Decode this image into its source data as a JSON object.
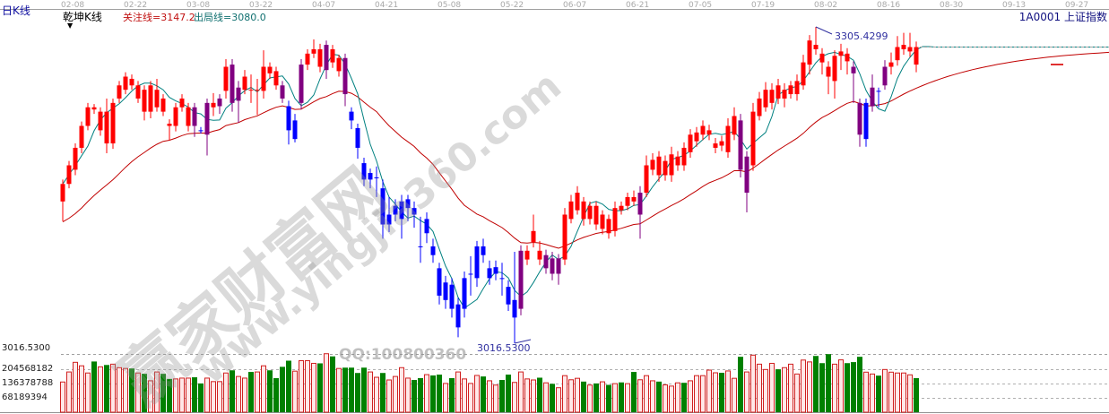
{
  "header": {
    "period_label": "日K线",
    "indicator_name": "乾坤K线",
    "focus_line": "关注线=3147.2",
    "exit_line": "出局线=3080.0",
    "symbol": "1A0001 上证指数"
  },
  "watermark": {
    "cn": "赢家财富网",
    "url": "www.yingjia360.com",
    "qq": "QQ:100800360"
  },
  "colors": {
    "up": "#ff0000",
    "down": "#0000ff",
    "neutral": "#800080",
    "ma_short": "#008080",
    "ma_long": "#c00000",
    "vol_up_stroke": "#d02020",
    "vol_up_fill": "#ffe8e8",
    "vol_down": "#008000",
    "label": "#3030a0"
  },
  "chart_data": {
    "type": "candlestick",
    "date_ticks": [
      "02-08",
      "02-22",
      "03-08",
      "03-22",
      "04-07",
      "04-21",
      "05-08",
      "05-22",
      "06-07",
      "06-21",
      "07-05",
      "07-19",
      "08-02",
      "08-16",
      "08-30",
      "09-13",
      "09-27"
    ],
    "price_axis_label": "3016.5300",
    "high_annotation": "3305.4299",
    "low_annotation": "3016.5300",
    "candle_fields": [
      "open",
      "high",
      "low",
      "close",
      "color"
    ],
    "candles": [
      [
        3146,
        3166,
        3128,
        3162,
        "r"
      ],
      [
        3162,
        3183,
        3158,
        3179,
        "r"
      ],
      [
        3175,
        3199,
        3170,
        3195,
        "r"
      ],
      [
        3195,
        3219,
        3190,
        3215,
        "r"
      ],
      [
        3215,
        3236,
        3211,
        3232,
        "r"
      ],
      [
        3230,
        3235,
        3226,
        3232,
        "r"
      ],
      [
        3211,
        3232,
        3206,
        3228,
        "r"
      ],
      [
        3199,
        3240,
        3190,
        3228,
        "r"
      ],
      [
        3199,
        3240,
        3194,
        3236,
        "r"
      ],
      [
        3240,
        3256,
        3236,
        3252,
        "r"
      ],
      [
        3248,
        3264,
        3244,
        3260,
        "r"
      ],
      [
        3252,
        3262,
        3248,
        3258,
        "r"
      ],
      [
        3240,
        3256,
        3236,
        3252,
        "r"
      ],
      [
        3228,
        3252,
        3220,
        3248,
        "r"
      ],
      [
        3228,
        3256,
        3222,
        3252,
        "r"
      ],
      [
        3232,
        3258,
        3228,
        3248,
        "r"
      ],
      [
        3228,
        3244,
        3224,
        3240,
        "r"
      ],
      [
        3215,
        3221,
        3202,
        3217,
        "r"
      ],
      [
        3215,
        3236,
        3210,
        3232,
        "r"
      ],
      [
        3232,
        3244,
        3228,
        3240,
        "r"
      ],
      [
        3215,
        3236,
        3210,
        3232,
        "r"
      ],
      [
        3232,
        3236,
        3205,
        3215,
        "p"
      ],
      [
        3211,
        3214,
        3208,
        3211,
        "b"
      ],
      [
        3236,
        3240,
        3188,
        3207,
        "p"
      ],
      [
        3232,
        3245,
        3224,
        3236,
        "r"
      ],
      [
        3240,
        3244,
        3226,
        3233,
        "p"
      ],
      [
        3247,
        3276,
        3240,
        3269,
        "r"
      ],
      [
        3271,
        3276,
        3228,
        3236,
        "p"
      ],
      [
        3250,
        3256,
        3218,
        3238,
        "p"
      ],
      [
        3248,
        3266,
        3244,
        3260,
        "r"
      ],
      [
        3248,
        3262,
        3236,
        3248,
        "r"
      ],
      [
        3248,
        3258,
        3225,
        3248,
        "r"
      ],
      [
        3247,
        3284,
        3240,
        3269,
        "r"
      ],
      [
        3263,
        3273,
        3258,
        3269,
        "r"
      ],
      [
        3252,
        3269,
        3248,
        3265,
        "r"
      ],
      [
        3240,
        3256,
        3236,
        3252,
        "p"
      ],
      [
        3233,
        3238,
        3198,
        3211,
        "b"
      ],
      [
        3220,
        3226,
        3200,
        3203,
        "b"
      ],
      [
        3271,
        3276,
        3230,
        3236,
        "p"
      ],
      [
        3271,
        3285,
        3266,
        3281,
        "r"
      ],
      [
        3281,
        3294,
        3277,
        3285,
        "r"
      ],
      [
        3269,
        3290,
        3264,
        3285,
        "r"
      ],
      [
        3289,
        3293,
        3258,
        3266,
        "p"
      ],
      [
        3273,
        3289,
        3268,
        3285,
        "r"
      ],
      [
        3265,
        3280,
        3260,
        3277,
        "r"
      ],
      [
        3277,
        3281,
        3233,
        3244,
        "p"
      ],
      [
        3228,
        3232,
        3212,
        3220,
        "b"
      ],
      [
        3213,
        3217,
        3185,
        3195,
        "b"
      ],
      [
        3181,
        3186,
        3160,
        3166,
        "b"
      ],
      [
        3172,
        3176,
        3158,
        3166,
        "b"
      ],
      [
        3168,
        3178,
        3150,
        3168,
        "b"
      ],
      [
        3158,
        3166,
        3112,
        3125,
        "b"
      ],
      [
        3134,
        3150,
        3118,
        3125,
        "b"
      ],
      [
        3142,
        3148,
        3128,
        3134,
        "b"
      ],
      [
        3146,
        3152,
        3112,
        3130,
        "b"
      ],
      [
        3148,
        3152,
        3128,
        3140,
        "b"
      ],
      [
        3140,
        3146,
        3122,
        3134,
        "b"
      ],
      [
        3105,
        3132,
        3090,
        3105,
        "b"
      ],
      [
        3130,
        3136,
        3108,
        3117,
        "b"
      ],
      [
        3105,
        3112,
        3090,
        3097,
        "b"
      ],
      [
        3085,
        3090,
        3052,
        3060,
        "b"
      ],
      [
        3072,
        3078,
        3048,
        3056,
        "b"
      ],
      [
        3070,
        3076,
        3040,
        3048,
        "b"
      ],
      [
        3052,
        3058,
        3022,
        3031,
        "b"
      ],
      [
        3076,
        3082,
        3040,
        3048,
        "b"
      ],
      [
        3080,
        3096,
        3060,
        3080,
        "b"
      ],
      [
        3105,
        3110,
        3068,
        3076,
        "b"
      ],
      [
        3105,
        3112,
        3090,
        3097,
        "b"
      ],
      [
        3085,
        3092,
        3070,
        3076,
        "b"
      ],
      [
        3086,
        3092,
        3074,
        3080,
        "b"
      ],
      [
        3076,
        3090,
        3060,
        3076,
        "b"
      ],
      [
        3068,
        3074,
        3046,
        3052,
        "b"
      ],
      [
        3056,
        3100,
        3016.53,
        3040,
        "b"
      ],
      [
        3101,
        3106,
        3042,
        3048,
        "p"
      ],
      [
        3093,
        3106,
        3088,
        3101,
        "r"
      ],
      [
        3109,
        3134,
        3104,
        3119,
        "r"
      ],
      [
        3093,
        3110,
        3088,
        3101,
        "r"
      ],
      [
        3097,
        3102,
        3080,
        3085,
        "p"
      ],
      [
        3094,
        3100,
        3074,
        3080,
        "p"
      ],
      [
        3094,
        3098,
        3070,
        3080,
        "p"
      ],
      [
        3093,
        3140,
        3088,
        3134,
        "r"
      ],
      [
        3130,
        3152,
        3126,
        3146,
        "r"
      ],
      [
        3138,
        3160,
        3134,
        3154,
        "r"
      ],
      [
        3130,
        3150,
        3124,
        3146,
        "r"
      ],
      [
        3130,
        3146,
        3125,
        3142,
        "r"
      ],
      [
        3125,
        3146,
        3120,
        3142,
        "r"
      ],
      [
        3121,
        3138,
        3116,
        3134,
        "r"
      ],
      [
        3117,
        3134,
        3112,
        3130,
        "r"
      ],
      [
        3119,
        3146,
        3114,
        3140,
        "r"
      ],
      [
        3138,
        3146,
        3134,
        3142,
        "r"
      ],
      [
        3142,
        3154,
        3138,
        3150,
        "r"
      ],
      [
        3146,
        3156,
        3142,
        3150,
        "r"
      ],
      [
        3154,
        3160,
        3112,
        3134,
        "p"
      ],
      [
        3154,
        3188,
        3150,
        3179,
        "r"
      ],
      [
        3175,
        3190,
        3170,
        3184,
        "r"
      ],
      [
        3170,
        3192,
        3164,
        3187,
        "r"
      ],
      [
        3170,
        3188,
        3165,
        3183,
        "r"
      ],
      [
        3170,
        3196,
        3164,
        3189,
        "r"
      ],
      [
        3179,
        3192,
        3174,
        3187,
        "r"
      ],
      [
        3179,
        3200,
        3174,
        3195,
        "r"
      ],
      [
        3191,
        3212,
        3186,
        3207,
        "r"
      ],
      [
        3201,
        3214,
        3196,
        3209,
        "r"
      ],
      [
        3207,
        3220,
        3202,
        3215,
        "r"
      ],
      [
        3207,
        3216,
        3202,
        3211,
        "r"
      ],
      [
        3195,
        3204,
        3190,
        3199,
        "r"
      ],
      [
        3197,
        3206,
        3192,
        3201,
        "r"
      ],
      [
        3191,
        3222,
        3186,
        3215,
        "r"
      ],
      [
        3207,
        3232,
        3202,
        3224,
        "r"
      ],
      [
        3220,
        3226,
        3168,
        3175,
        "p"
      ],
      [
        3187,
        3192,
        3136,
        3154,
        "p"
      ],
      [
        3179,
        3236,
        3174,
        3228,
        "r"
      ],
      [
        3224,
        3246,
        3220,
        3240,
        "r"
      ],
      [
        3232,
        3255,
        3228,
        3248,
        "r"
      ],
      [
        3236,
        3254,
        3230,
        3248,
        "r"
      ],
      [
        3240,
        3258,
        3235,
        3252,
        "r"
      ],
      [
        3240,
        3254,
        3232,
        3248,
        "r"
      ],
      [
        3244,
        3256,
        3240,
        3252,
        "r"
      ],
      [
        3244,
        3262,
        3238,
        3256,
        "r"
      ],
      [
        3252,
        3280,
        3248,
        3273,
        "r"
      ],
      [
        3271,
        3298,
        3262,
        3293,
        "r"
      ],
      [
        3285,
        3305.43,
        3280,
        3289,
        "r"
      ],
      [
        3273,
        3286,
        3262,
        3281,
        "r"
      ],
      [
        3260,
        3274,
        3244,
        3269,
        "r"
      ],
      [
        3256,
        3284,
        3240,
        3279,
        "r"
      ],
      [
        3279,
        3290,
        3266,
        3283,
        "r"
      ],
      [
        3274,
        3286,
        3262,
        3281,
        "r"
      ],
      [
        3269,
        3274,
        3236,
        3263,
        "p"
      ],
      [
        3236,
        3240,
        3196,
        3207,
        "p"
      ],
      [
        3236,
        3240,
        3196,
        3203,
        "b"
      ],
      [
        3250,
        3262,
        3228,
        3233,
        "p"
      ],
      [
        3247,
        3250,
        3232,
        3247,
        "b"
      ],
      [
        3269,
        3275,
        3248,
        3252,
        "p"
      ],
      [
        3269,
        3282,
        3262,
        3273,
        "r"
      ],
      [
        3275,
        3297,
        3270,
        3287,
        "r"
      ],
      [
        3285,
        3300,
        3280,
        3289,
        "r"
      ],
      [
        3283,
        3300,
        3278,
        3287,
        "r"
      ],
      [
        3271,
        3292,
        3264,
        3287,
        "r"
      ]
    ],
    "volume_axis_labels": [
      "204568182",
      "136378788",
      "68189394"
    ],
    "volume_fields": [
      "value_millions",
      "color"
    ],
    "volumes": [
      [
        143,
        "r"
      ],
      [
        192,
        "r"
      ],
      [
        239,
        "r"
      ],
      [
        222,
        "r"
      ],
      [
        187,
        "r"
      ],
      [
        243,
        "g"
      ],
      [
        217,
        "r"
      ],
      [
        226,
        "g"
      ],
      [
        230,
        "r"
      ],
      [
        213,
        "r"
      ],
      [
        209,
        "r"
      ],
      [
        209,
        "g"
      ],
      [
        187,
        "r"
      ],
      [
        183,
        "g"
      ],
      [
        149,
        "r"
      ],
      [
        192,
        "r"
      ],
      [
        183,
        "g"
      ],
      [
        158,
        "g"
      ],
      [
        158,
        "r"
      ],
      [
        162,
        "r"
      ],
      [
        162,
        "r"
      ],
      [
        166,
        "g"
      ],
      [
        136,
        "g"
      ],
      [
        162,
        "r"
      ],
      [
        145,
        "r"
      ],
      [
        145,
        "r"
      ],
      [
        187,
        "r"
      ],
      [
        200,
        "g"
      ],
      [
        170,
        "r"
      ],
      [
        162,
        "r"
      ],
      [
        192,
        "g"
      ],
      [
        192,
        "r"
      ],
      [
        222,
        "r"
      ],
      [
        200,
        "g"
      ],
      [
        162,
        "g"
      ],
      [
        217,
        "g"
      ],
      [
        247,
        "g"
      ],
      [
        196,
        "r"
      ],
      [
        247,
        "r"
      ],
      [
        247,
        "r"
      ],
      [
        234,
        "r"
      ],
      [
        234,
        "g"
      ],
      [
        281,
        "r"
      ],
      [
        268,
        "g"
      ],
      [
        209,
        "r"
      ],
      [
        213,
        "g"
      ],
      [
        213,
        "g"
      ],
      [
        187,
        "g"
      ],
      [
        213,
        "g"
      ],
      [
        192,
        "r"
      ],
      [
        166,
        "r"
      ],
      [
        187,
        "g"
      ],
      [
        153,
        "r"
      ],
      [
        170,
        "r"
      ],
      [
        213,
        "r"
      ],
      [
        162,
        "r"
      ],
      [
        153,
        "g"
      ],
      [
        162,
        "g"
      ],
      [
        179,
        "r"
      ],
      [
        175,
        "g"
      ],
      [
        179,
        "g"
      ],
      [
        136,
        "r"
      ],
      [
        162,
        "g"
      ],
      [
        192,
        "r"
      ],
      [
        158,
        "r"
      ],
      [
        136,
        "r"
      ],
      [
        175,
        "r"
      ],
      [
        170,
        "g"
      ],
      [
        149,
        "r"
      ],
      [
        128,
        "r"
      ],
      [
        153,
        "g"
      ],
      [
        179,
        "g"
      ],
      [
        141,
        "r"
      ],
      [
        192,
        "r"
      ],
      [
        158,
        "r"
      ],
      [
        153,
        "r"
      ],
      [
        164,
        "g"
      ],
      [
        139,
        "r"
      ],
      [
        134,
        "g"
      ],
      [
        115,
        "r"
      ],
      [
        174,
        "r"
      ],
      [
        154,
        "r"
      ],
      [
        161,
        "r"
      ],
      [
        145,
        "g"
      ],
      [
        128,
        "r"
      ],
      [
        136,
        "g"
      ],
      [
        144,
        "r"
      ],
      [
        129,
        "g"
      ],
      [
        135,
        "r"
      ],
      [
        141,
        "g"
      ],
      [
        135,
        "r"
      ],
      [
        192,
        "g"
      ],
      [
        154,
        "r"
      ],
      [
        174,
        "r"
      ],
      [
        149,
        "r"
      ],
      [
        145,
        "g"
      ],
      [
        129,
        "r"
      ],
      [
        123,
        "r"
      ],
      [
        139,
        "r"
      ],
      [
        139,
        "g"
      ],
      [
        149,
        "r"
      ],
      [
        174,
        "r"
      ],
      [
        174,
        "r"
      ],
      [
        201,
        "r"
      ],
      [
        188,
        "r"
      ],
      [
        188,
        "g"
      ],
      [
        197,
        "r"
      ],
      [
        161,
        "r"
      ],
      [
        266,
        "g"
      ],
      [
        192,
        "r"
      ],
      [
        274,
        "r"
      ],
      [
        230,
        "r"
      ],
      [
        204,
        "r"
      ],
      [
        234,
        "r"
      ],
      [
        205,
        "g"
      ],
      [
        213,
        "r"
      ],
      [
        230,
        "r"
      ],
      [
        182,
        "r"
      ],
      [
        250,
        "r"
      ],
      [
        241,
        "r"
      ],
      [
        270,
        "g"
      ],
      [
        235,
        "g"
      ],
      [
        279,
        "g"
      ],
      [
        230,
        "r"
      ],
      [
        251,
        "r"
      ],
      [
        235,
        "g"
      ],
      [
        240,
        "g"
      ],
      [
        266,
        "g"
      ],
      [
        191,
        "r"
      ],
      [
        182,
        "r"
      ],
      [
        174,
        "g"
      ],
      [
        204,
        "r"
      ],
      [
        191,
        "r"
      ],
      [
        187,
        "r"
      ],
      [
        187,
        "r"
      ],
      [
        178,
        "r"
      ],
      [
        162,
        "g"
      ]
    ]
  }
}
